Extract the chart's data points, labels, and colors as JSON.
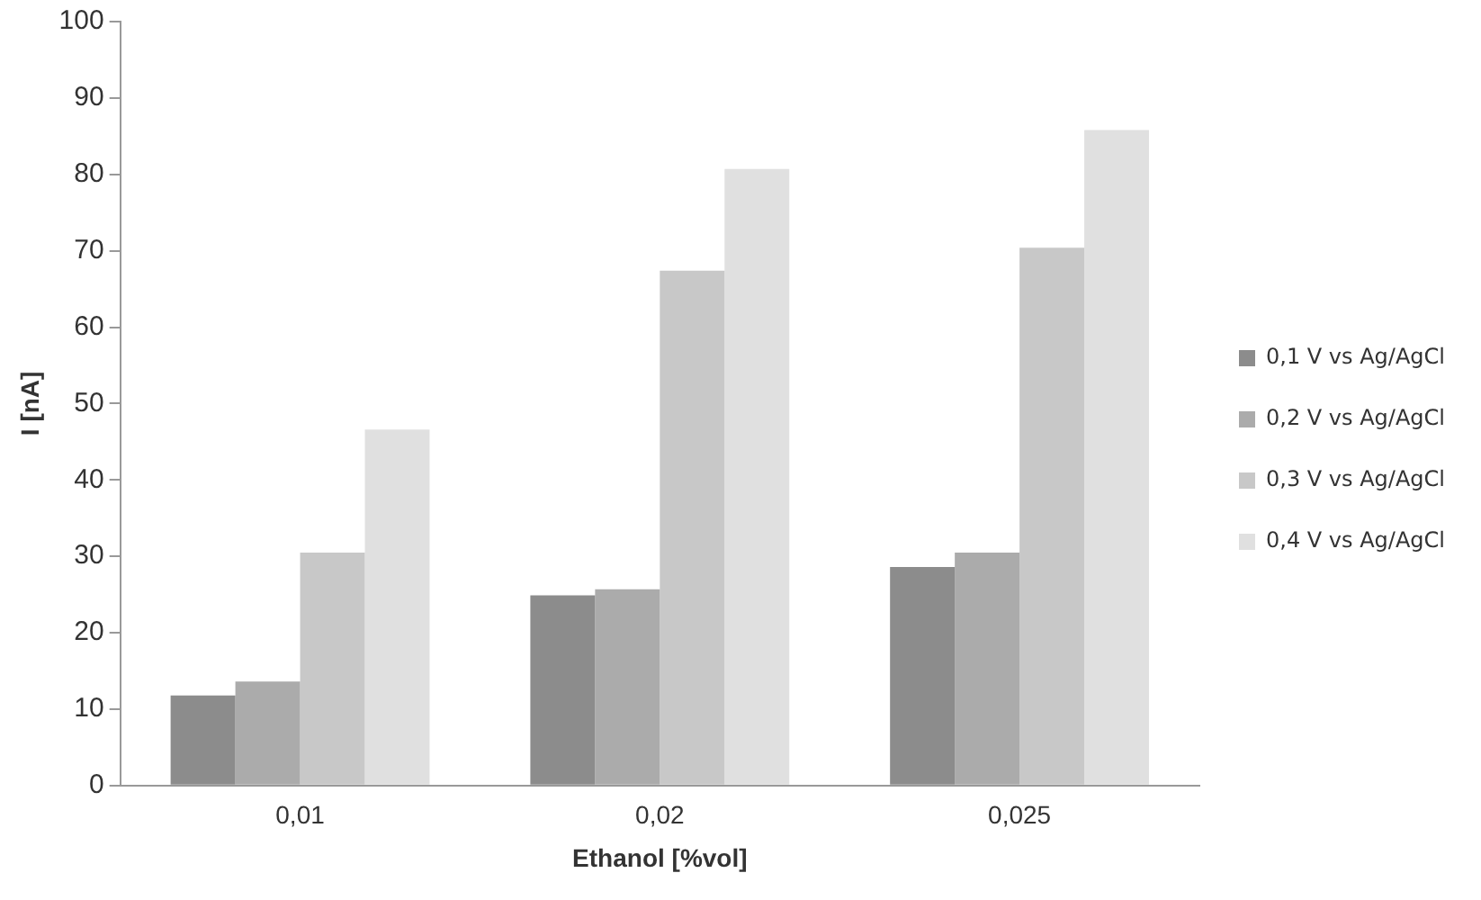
{
  "chart_data": {
    "type": "bar",
    "xlabel": "Ethanol [%vol]",
    "ylabel": "I [nA]",
    "categories": [
      "0,01",
      "0,02",
      "0,025"
    ],
    "series": [
      {
        "name": "0,1 V vs Ag/AgCl",
        "color": "#8c8c8c",
        "values": [
          11.8,
          24.9,
          28.6
        ]
      },
      {
        "name": "0,2 V vs Ag/AgCl",
        "color": "#ababab",
        "values": [
          13.6,
          25.7,
          30.5
        ]
      },
      {
        "name": "0,3 V vs Ag/AgCl",
        "color": "#c8c8c8",
        "values": [
          30.5,
          67.4,
          70.4
        ]
      },
      {
        "name": "0,4 V vs Ag/AgCl",
        "color": "#e0e0e0",
        "values": [
          46.6,
          80.7,
          85.8
        ]
      }
    ],
    "ylim": [
      0,
      100
    ],
    "yticks": [
      0,
      10,
      20,
      30,
      40,
      50,
      60,
      70,
      80,
      90,
      100
    ],
    "grid": false,
    "legend": "right"
  }
}
